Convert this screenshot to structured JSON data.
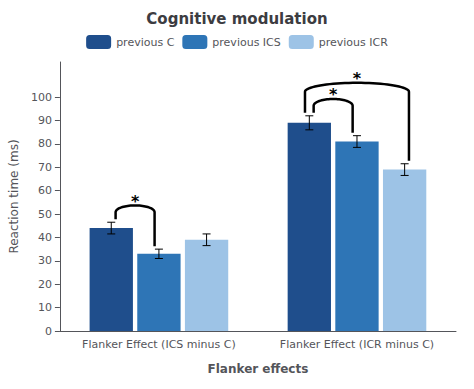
{
  "chart_data": {
    "type": "bar",
    "title": "Cognitive modulation",
    "xlabel": "Flanker effects",
    "ylabel": "Reaction time (ms)",
    "categories": [
      "Flanker Effect (ICS minus C)",
      "Flanker Effect (ICR minus C)"
    ],
    "series": [
      {
        "name": "previous C",
        "color": "#1f4e8c",
        "values": [
          44,
          89
        ],
        "errors": [
          2.5,
          3.0
        ]
      },
      {
        "name": "previous ICS",
        "color": "#2e75b6",
        "values": [
          33,
          81
        ],
        "errors": [
          2.0,
          2.5
        ]
      },
      {
        "name": "previous ICR",
        "color": "#9dc3e6",
        "values": [
          39,
          69
        ],
        "errors": [
          2.5,
          2.5
        ]
      }
    ],
    "ylim": [
      0,
      115
    ],
    "yticks": [
      0,
      10,
      20,
      30,
      40,
      50,
      60,
      70,
      80,
      90,
      100
    ],
    "grid": false,
    "legend": "top",
    "annotations": [
      {
        "text": "*",
        "category": "Flanker Effect (ICS minus C)",
        "from": "previous C",
        "to": "previous ICS"
      },
      {
        "text": "*",
        "category": "Flanker Effect (ICR minus C)",
        "from": "previous C",
        "to": "previous ICS"
      },
      {
        "text": "*",
        "category": "Flanker Effect (ICR minus C)",
        "from": "previous C",
        "to": "previous ICR"
      }
    ]
  }
}
